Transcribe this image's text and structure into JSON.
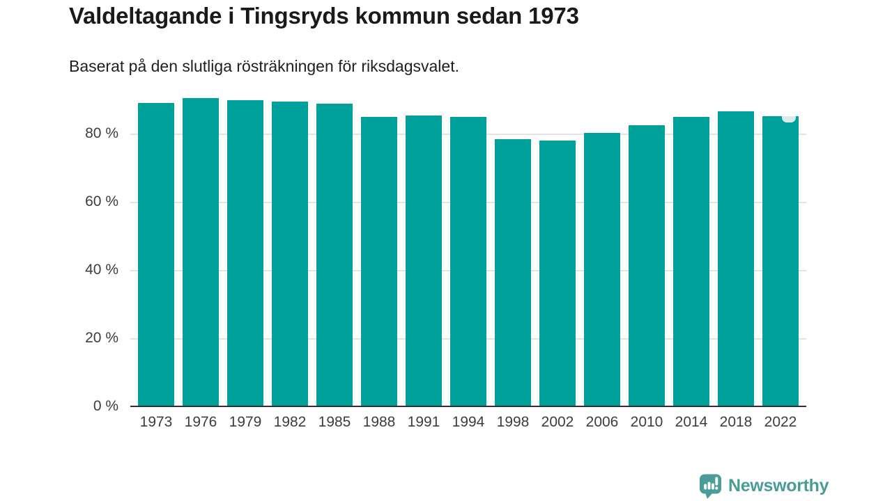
{
  "chart_data": {
    "type": "bar",
    "title": "Valdeltagande i Tingsryds kommun sedan 1973",
    "subtitle": "Baserat på den slutliga rösträkningen för riksdagsvalet.",
    "categories": [
      "1973",
      "1976",
      "1979",
      "1982",
      "1985",
      "1988",
      "1991",
      "1994",
      "1998",
      "2002",
      "2006",
      "2010",
      "2014",
      "2018",
      "2022"
    ],
    "values": [
      89.0,
      90.5,
      89.9,
      89.4,
      88.8,
      84.9,
      85.3,
      84.9,
      78.5,
      78.0,
      80.3,
      82.5,
      84.9,
      86.7,
      85.2
    ],
    "unit": "%",
    "xlabel": "",
    "ylabel": "",
    "ylim": [
      0,
      92
    ],
    "yticks": [
      0,
      20,
      40,
      60,
      80
    ],
    "ytick_suffix": " %",
    "grid": "horizontal",
    "legend": "none",
    "colors": {
      "bar": "#00a09a",
      "gridline": "#e3e3e3",
      "axis_line": "#2f2f2f",
      "tick_label": "#3d3d3d",
      "last_bar_notch": "#d9ece9"
    }
  },
  "footer": {
    "brand_name": "Newsworthy",
    "brand_color": "#4a9c98",
    "logo_icon": "newsworthy-speech-bubble-bar-chart"
  }
}
